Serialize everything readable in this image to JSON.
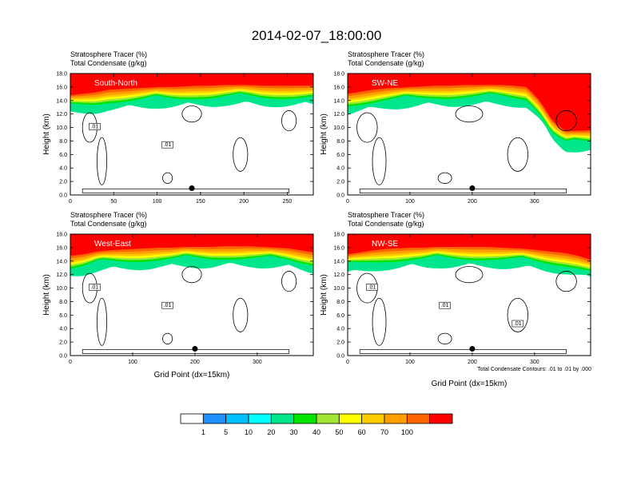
{
  "figure": {
    "title": "2014-02-07_18:00:00",
    "left_title_line1": "Stratosphere Tracer   (%)",
    "left_title_line2": "Total Condensate   (g/kg)",
    "y_axis_label": "Height (km)",
    "x_axis_label": "Grid Point (dx=15km)",
    "contour_note": "Total Condensate Contours: .01 to .01 by .000"
  },
  "colorbar": {
    "levels": [
      "1",
      "5",
      "10",
      "20",
      "30",
      "40",
      "50",
      "60",
      "70",
      "100"
    ],
    "colors": [
      "#ffffff",
      "#1e90ff",
      "#00bfff",
      "#00ffff",
      "#00e68c",
      "#00e600",
      "#a0e632",
      "#ffff00",
      "#ffcc00",
      "#ffa000",
      "#ff6400",
      "#ff0000"
    ]
  },
  "chart_data": [
    {
      "type": "heatmap",
      "panel_label": "South-North",
      "title": "Stratosphere Tracer   (%) / Total Condensate   (g/kg)",
      "xlabel": "",
      "ylabel": "Height (km)",
      "xlim": [
        0,
        280
      ],
      "ylim": [
        0,
        18
      ],
      "xticks": [
        "0",
        "50",
        "100",
        "150",
        "200",
        "250"
      ],
      "yticks": [
        "0.0",
        "2.0",
        "4.0",
        "6.0",
        "8.0",
        "10.0",
        "12.0",
        "14.0",
        "16.0",
        "18.0"
      ],
      "contour_labels": [
        ".01",
        ".01"
      ],
      "marker": {
        "x": 140,
        "y": 1.0
      },
      "tracer_front_km": [
        14.8,
        15.0,
        15.2,
        15.6,
        15.7,
        15.8,
        15.9,
        16.0,
        16.0,
        16.1,
        16.2,
        16.2,
        16.3,
        16.3,
        16.3,
        16.2,
        16.2,
        16.2,
        16.2,
        16.2
      ]
    },
    {
      "type": "heatmap",
      "panel_label": "SW-NE",
      "title": "Stratosphere Tracer   (%) / Total Condensate   (g/kg)",
      "xlabel": "",
      "ylabel": "Height (km)",
      "xlim": [
        0,
        390
      ],
      "ylim": [
        0,
        18
      ],
      "xticks": [
        "0",
        "100",
        "200",
        "300"
      ],
      "yticks": [
        "0.0",
        "2.0",
        "4.0",
        "6.0",
        "8.0",
        "10.0",
        "12.0",
        "14.0",
        "16.0",
        "18.0"
      ],
      "contour_labels": [],
      "marker": {
        "x": 200,
        "y": 1.0
      },
      "tracer_front_km": [
        15.0,
        15.3,
        15.6,
        15.8,
        15.9,
        16.0,
        16.1,
        16.2,
        16.2,
        16.3,
        16.3,
        16.3,
        16.3,
        16.2,
        16.0,
        14.0,
        11.0,
        9.5,
        9.5,
        9.6
      ]
    },
    {
      "type": "heatmap",
      "panel_label": "West-East",
      "title": "Stratosphere Tracer   (%) / Total Condensate   (g/kg)",
      "xlabel": "Grid Point (dx=15km)",
      "ylabel": "Height (km)",
      "xlim": [
        0,
        390
      ],
      "ylim": [
        0,
        18
      ],
      "xticks": [
        "0",
        "100",
        "200",
        "300"
      ],
      "yticks": [
        "0.0",
        "2.0",
        "4.0",
        "6.0",
        "8.0",
        "10.0",
        "12.0",
        "14.0",
        "16.0",
        "18.0"
      ],
      "contour_labels": [
        ".01",
        ".01"
      ],
      "marker": {
        "x": 200,
        "y": 1.0
      },
      "tracer_front_km": [
        14.8,
        15.0,
        15.4,
        15.6,
        15.7,
        15.8,
        15.9,
        16.0,
        16.0,
        16.1,
        16.1,
        16.1,
        16.2,
        16.2,
        16.2,
        16.1,
        16.0,
        15.9,
        15.6,
        15.3
      ]
    },
    {
      "type": "heatmap",
      "panel_label": "NW-SE",
      "title": "Stratosphere Tracer   (%) / Total Condensate   (g/kg)",
      "xlabel": "Grid Point (dx=15km)",
      "ylabel": "Height (km)",
      "xlim": [
        0,
        390
      ],
      "ylim": [
        0,
        18
      ],
      "xticks": [
        "0",
        "100",
        "200",
        "300"
      ],
      "yticks": [
        "0.0",
        "2.0",
        "4.0",
        "6.0",
        "8.0",
        "10.0",
        "12.0",
        "14.0",
        "16.0",
        "18.0"
      ],
      "contour_labels": [
        ".01",
        ".01",
        ".01"
      ],
      "marker": {
        "x": 200,
        "y": 1.0
      },
      "tracer_front_km": [
        15.0,
        15.3,
        15.6,
        15.8,
        15.9,
        16.0,
        16.0,
        16.1,
        16.1,
        16.1,
        16.1,
        16.1,
        16.0,
        15.9,
        15.8,
        15.6,
        15.4,
        15.2,
        14.8,
        14.2
      ]
    }
  ]
}
